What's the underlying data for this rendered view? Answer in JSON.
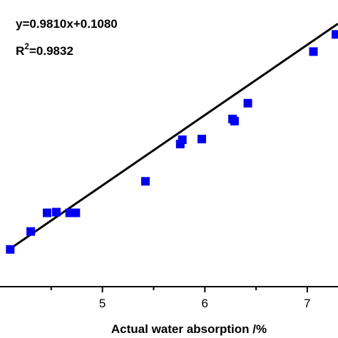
{
  "chart_data": {
    "type": "scatter",
    "title": "",
    "xlabel": "Actual water absorption /%",
    "ylabel": "",
    "xlim": [
      4.0,
      7.3
    ],
    "ylim": [
      3.6,
      7.6
    ],
    "x_ticks": [
      5,
      6,
      7
    ],
    "x_tick_labels": [
      "5",
      "6",
      "7"
    ],
    "grid": false,
    "legend": "none",
    "marker_color": "#0000ee",
    "line_color": "#000000",
    "annotations": {
      "equation": "y=0.9810x+0.1080",
      "r2_prefix": "R",
      "r2_sup": "2",
      "r2_value": "=0.9832"
    },
    "fit_line": {
      "slope": 0.981,
      "intercept": 0.108,
      "x_range": [
        4.1,
        7.3
      ]
    },
    "points": [
      {
        "x": 4.1,
        "y": 4.12
      },
      {
        "x": 4.3,
        "y": 4.37
      },
      {
        "x": 4.46,
        "y": 4.63
      },
      {
        "x": 4.55,
        "y": 4.64
      },
      {
        "x": 4.68,
        "y": 4.63
      },
      {
        "x": 4.74,
        "y": 4.63
      },
      {
        "x": 5.42,
        "y": 5.07
      },
      {
        "x": 5.76,
        "y": 5.59
      },
      {
        "x": 5.78,
        "y": 5.65
      },
      {
        "x": 5.97,
        "y": 5.66
      },
      {
        "x": 6.27,
        "y": 5.94
      },
      {
        "x": 6.29,
        "y": 5.91
      },
      {
        "x": 6.42,
        "y": 6.16
      },
      {
        "x": 7.06,
        "y": 6.88
      },
      {
        "x": 7.28,
        "y": 7.12
      }
    ]
  }
}
